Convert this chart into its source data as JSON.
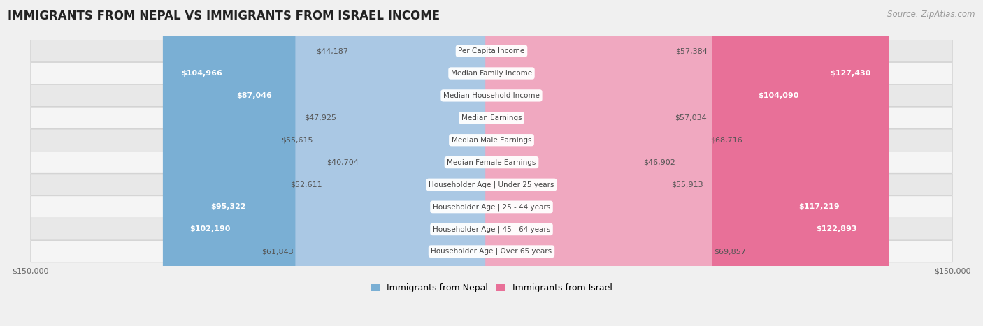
{
  "title": "IMMIGRANTS FROM NEPAL VS IMMIGRANTS FROM ISRAEL INCOME",
  "source": "Source: ZipAtlas.com",
  "categories": [
    "Per Capita Income",
    "Median Family Income",
    "Median Household Income",
    "Median Earnings",
    "Median Male Earnings",
    "Median Female Earnings",
    "Householder Age | Under 25 years",
    "Householder Age | 25 - 44 years",
    "Householder Age | 45 - 64 years",
    "Householder Age | Over 65 years"
  ],
  "nepal_values": [
    44187,
    104966,
    87046,
    47925,
    55615,
    40704,
    52611,
    95322,
    102190,
    61843
  ],
  "israel_values": [
    57384,
    127430,
    104090,
    57034,
    68716,
    46902,
    55913,
    117219,
    122893,
    69857
  ],
  "nepal_color_large": "#7aafd4",
  "nepal_color_small": "#aac8e4",
  "israel_color_large": "#e87098",
  "israel_color_small": "#f0a8c0",
  "nepal_legend": "Immigrants from Nepal",
  "israel_legend": "Immigrants from Israel",
  "max_value": 150000,
  "bg_color": "#f0f0f0",
  "row_bg_even": "#e8e8e8",
  "row_bg_odd": "#f5f5f5",
  "title_fontsize": 12,
  "source_fontsize": 8.5,
  "label_fontsize": 8,
  "category_fontsize": 7.5,
  "axis_fontsize": 8,
  "nepal_threshold": 70000,
  "israel_threshold": 70000
}
